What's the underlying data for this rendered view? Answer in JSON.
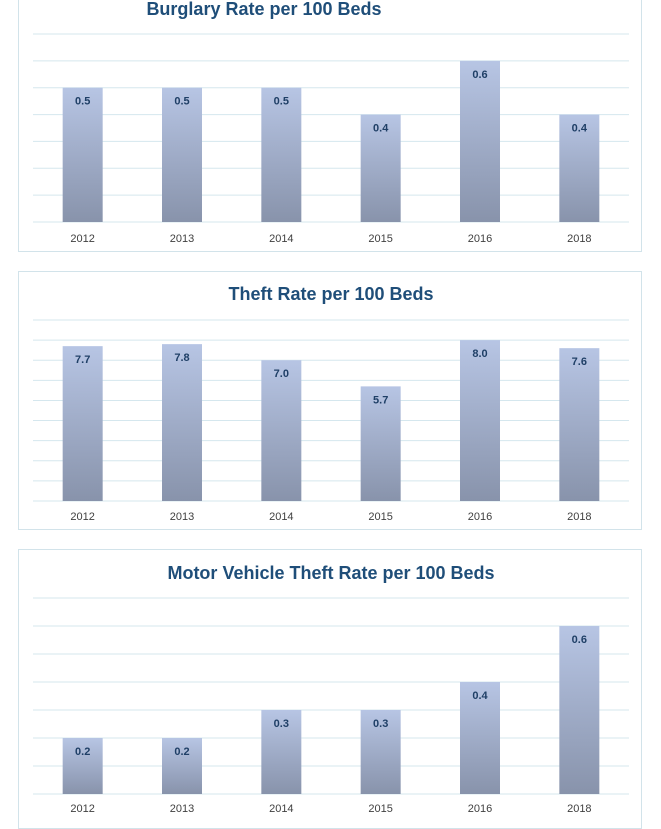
{
  "chart_data": [
    {
      "type": "bar",
      "title": "Burglary Rate per 100 Beds",
      "categories": [
        "2012",
        "2013",
        "2014",
        "2015",
        "2016",
        "2018"
      ],
      "values": [
        0.5,
        0.5,
        0.5,
        0.4,
        0.6,
        0.4
      ],
      "data_labels": [
        "0.5",
        "0.5",
        "0.5",
        "0.4",
        "0.6",
        "0.4"
      ],
      "ylim": [
        0,
        0.7
      ],
      "grid": true
    },
    {
      "type": "bar",
      "title": "Theft Rate per 100 Beds",
      "categories": [
        "2012",
        "2013",
        "2014",
        "2015",
        "2016",
        "2018"
      ],
      "values": [
        7.7,
        7.8,
        7.0,
        5.7,
        8.0,
        7.6
      ],
      "data_labels": [
        "7.7",
        "7.8",
        "7.0",
        "5.7",
        "8.0",
        "7.6"
      ],
      "ylim": [
        0,
        9
      ],
      "grid": true
    },
    {
      "type": "bar",
      "title": "Motor Vehicle Theft Rate per 100 Beds",
      "categories": [
        "2012",
        "2013",
        "2014",
        "2015",
        "2016",
        "2018"
      ],
      "values": [
        0.2,
        0.2,
        0.3,
        0.3,
        0.4,
        0.6
      ],
      "data_labels": [
        "0.2",
        "0.2",
        "0.3",
        "0.3",
        "0.4",
        "0.6"
      ],
      "ylim": [
        0,
        0.7
      ],
      "grid": true
    }
  ],
  "colors": {
    "bar_top": "#b7c5e4",
    "bar_bottom": "#8893ab",
    "gridline": "#d5e7ee",
    "title": "#1f4e79",
    "data_label": "#1f3f66"
  }
}
